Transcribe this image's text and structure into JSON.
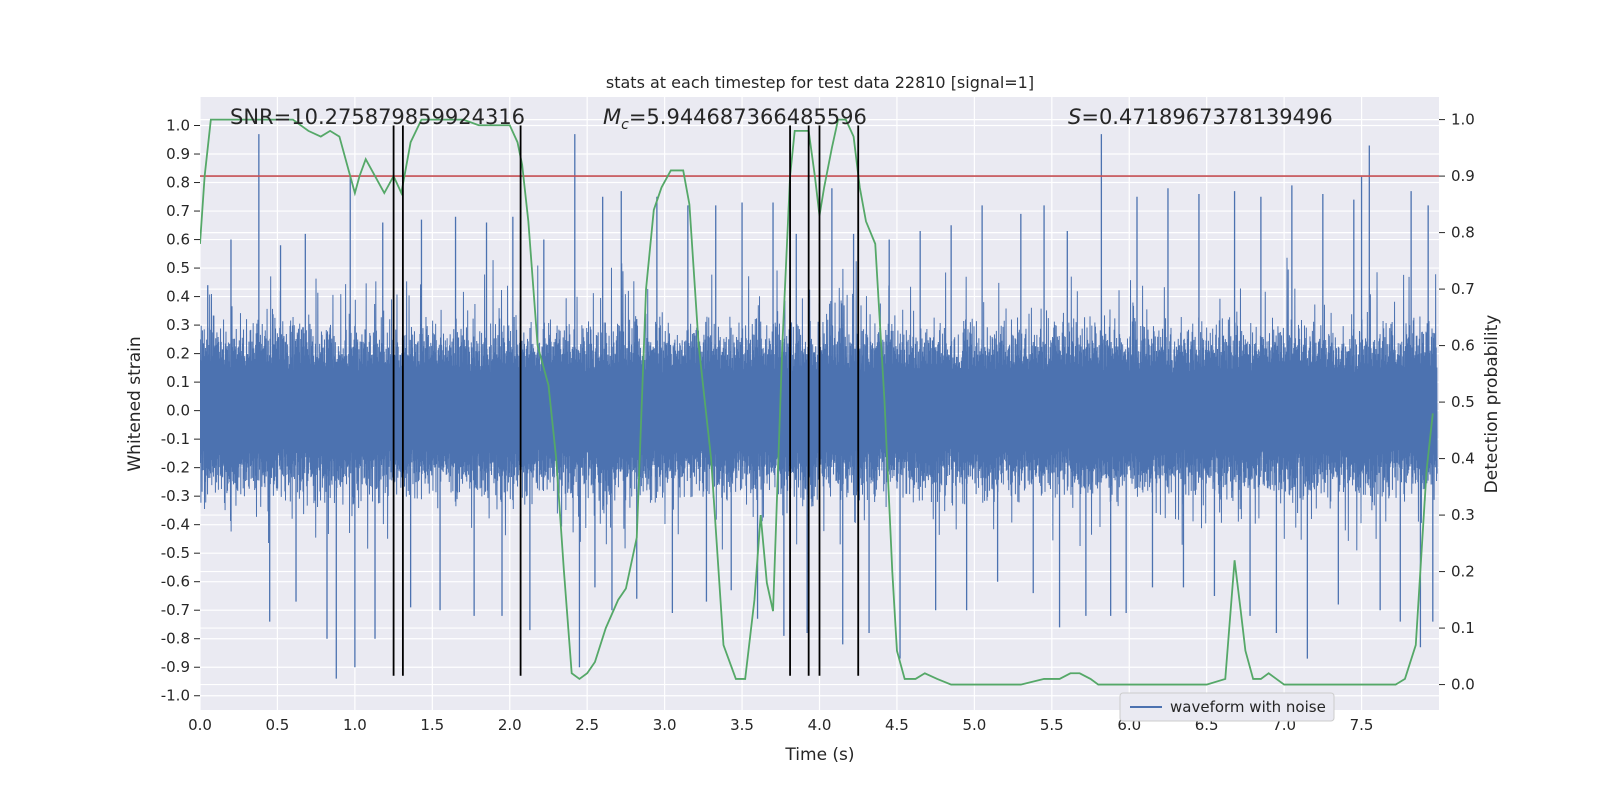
{
  "chart_data": {
    "type": "line",
    "title": "stats at each timestep for test data 22810 [signal=1]",
    "xlabel": "Time (s)",
    "ylabel": "Whitened strain",
    "y2label": "Detection probability",
    "xlim": [
      0.0,
      8.0
    ],
    "ylim": [
      -1.05,
      1.1
    ],
    "y2lim": [
      -0.045,
      1.04
    ],
    "xticks": [
      "0.0",
      "0.5",
      "1.0",
      "1.5",
      "2.0",
      "2.5",
      "3.0",
      "3.5",
      "4.0",
      "4.5",
      "5.0",
      "5.5",
      "6.0",
      "6.5",
      "7.0",
      "7.5"
    ],
    "yticks": [
      "1.0",
      "0.9",
      "0.8",
      "0.7",
      "0.6",
      "0.5",
      "0.4",
      "0.3",
      "0.2",
      "0.1",
      "0.0",
      "-0.1",
      "-0.2",
      "-0.3",
      "-0.4",
      "-0.5",
      "-0.6",
      "-0.7",
      "-0.8",
      "-0.9",
      "-1.0"
    ],
    "y2ticks": [
      "1.0",
      "0.9",
      "0.8",
      "0.7",
      "0.6",
      "0.5",
      "0.4",
      "0.3",
      "0.2",
      "0.1",
      "0.0"
    ],
    "grid": true,
    "legend_position": "bottom-right",
    "annotations": {
      "snr": "SNR=10.275879859924316",
      "mc_symbol": "M",
      "mc_sub": "c",
      "mc_value": "=5.944687366485596",
      "s_symbol": "S",
      "s_value": "=0.4718967378139496"
    },
    "threshold": {
      "value": 0.9,
      "axis": "right",
      "color": "#c44e52"
    },
    "vertical_markers": [
      1.25,
      1.31,
      2.07,
      3.81,
      3.93,
      4.0,
      4.25
    ],
    "series": [
      {
        "name": "waveform with noise",
        "color": "#4c72b0",
        "axis": "left",
        "description_range": [
          -1.0,
          1.0
        ],
        "spikes": [
          [
            0.05,
            0.44
          ],
          [
            0.2,
            0.6
          ],
          [
            0.38,
            0.97
          ],
          [
            0.45,
            -0.74
          ],
          [
            0.52,
            0.58
          ],
          [
            0.62,
            -0.67
          ],
          [
            0.68,
            0.62
          ],
          [
            0.82,
            -0.8
          ],
          [
            0.88,
            -0.94
          ],
          [
            0.97,
            0.82
          ],
          [
            1.0,
            -0.9
          ],
          [
            1.13,
            -0.8
          ],
          [
            1.18,
            0.66
          ],
          [
            1.36,
            -0.69
          ],
          [
            1.43,
            0.67
          ],
          [
            1.55,
            -0.7
          ],
          [
            1.65,
            0.68
          ],
          [
            1.77,
            -0.72
          ],
          [
            1.85,
            0.66
          ],
          [
            1.95,
            -0.72
          ],
          [
            2.02,
            0.68
          ],
          [
            2.13,
            -0.77
          ],
          [
            2.22,
            0.6
          ],
          [
            2.42,
            0.97
          ],
          [
            2.45,
            -0.9
          ],
          [
            2.55,
            -0.62
          ],
          [
            2.6,
            0.75
          ],
          [
            2.66,
            -0.7
          ],
          [
            2.72,
            0.77
          ],
          [
            2.82,
            -0.66
          ],
          [
            2.95,
            0.75
          ],
          [
            3.05,
            -0.71
          ],
          [
            3.15,
            0.72
          ],
          [
            3.27,
            -0.67
          ],
          [
            3.33,
            0.72
          ],
          [
            3.43,
            -0.63
          ],
          [
            3.5,
            0.73
          ],
          [
            3.6,
            -0.73
          ],
          [
            3.7,
            0.73
          ],
          [
            3.77,
            -0.79
          ],
          [
            3.85,
            0.62
          ],
          [
            3.92,
            -0.78
          ],
          [
            4.08,
            0.78
          ],
          [
            4.15,
            -0.82
          ],
          [
            4.22,
            0.62
          ],
          [
            4.32,
            -0.78
          ],
          [
            4.45,
            0.6
          ],
          [
            4.52,
            -0.87
          ],
          [
            4.65,
            0.63
          ],
          [
            4.75,
            -0.7
          ],
          [
            4.85,
            0.65
          ],
          [
            4.95,
            -0.7
          ],
          [
            5.05,
            0.72
          ],
          [
            5.15,
            -0.6
          ],
          [
            5.3,
            0.69
          ],
          [
            5.38,
            -0.64
          ],
          [
            5.45,
            0.72
          ],
          [
            5.55,
            -0.76
          ],
          [
            5.6,
            0.63
          ],
          [
            5.72,
            -0.72
          ],
          [
            5.82,
            0.97
          ],
          [
            5.88,
            -0.72
          ],
          [
            5.98,
            -0.71
          ],
          [
            6.05,
            0.75
          ],
          [
            6.15,
            -0.62
          ],
          [
            6.25,
            0.78
          ],
          [
            6.35,
            -0.62
          ],
          [
            6.45,
            0.76
          ],
          [
            6.55,
            -0.65
          ],
          [
            6.68,
            0.77
          ],
          [
            6.78,
            -0.72
          ],
          [
            6.85,
            0.75
          ],
          [
            6.95,
            -0.78
          ],
          [
            7.05,
            0.79
          ],
          [
            7.15,
            -0.87
          ],
          [
            7.25,
            0.76
          ],
          [
            7.35,
            -0.68
          ],
          [
            7.45,
            0.74
          ],
          [
            7.5,
            0.82
          ],
          [
            7.55,
            0.93
          ],
          [
            7.62,
            -0.7
          ],
          [
            7.75,
            -0.74
          ],
          [
            7.82,
            0.77
          ],
          [
            7.88,
            -0.83
          ],
          [
            7.93,
            0.72
          ],
          [
            7.96,
            -0.74
          ]
        ]
      },
      {
        "name": "Detection probability",
        "color": "#55a868",
        "axis": "right",
        "x": [
          0.0,
          0.03,
          0.07,
          0.14,
          0.2,
          0.3,
          0.4,
          0.5,
          0.6,
          0.7,
          0.78,
          0.84,
          0.9,
          0.96,
          1.0,
          1.03,
          1.07,
          1.13,
          1.19,
          1.25,
          1.3,
          1.36,
          1.43,
          1.5,
          1.6,
          1.7,
          1.8,
          1.85,
          1.95,
          2.0,
          2.05,
          2.08,
          2.12,
          2.18,
          2.25,
          2.3,
          2.35,
          2.4,
          2.45,
          2.5,
          2.55,
          2.62,
          2.7,
          2.75,
          2.82,
          2.88,
          2.93,
          2.98,
          3.04,
          3.08,
          3.12,
          3.16,
          3.22,
          3.3,
          3.38,
          3.46,
          3.52,
          3.58,
          3.62,
          3.66,
          3.7,
          3.76,
          3.81,
          3.84,
          3.88,
          3.93,
          3.97,
          4.0,
          4.03,
          4.08,
          4.12,
          4.17,
          4.22,
          4.26,
          4.3,
          4.36,
          4.42,
          4.47,
          4.5,
          4.55,
          4.62,
          4.68,
          4.76,
          4.85,
          4.95,
          5.1,
          5.3,
          5.45,
          5.55,
          5.62,
          5.68,
          5.75,
          5.8,
          5.95,
          6.15,
          6.25,
          6.35,
          6.5,
          6.62,
          6.68,
          6.72,
          6.75,
          6.8,
          6.85,
          6.9,
          6.95,
          7.0,
          7.1,
          7.2,
          7.4,
          7.6,
          7.72,
          7.78,
          7.85,
          7.92,
          7.96
        ],
        "y": [
          0.78,
          0.9,
          1.0,
          1.0,
          1.0,
          1.0,
          1.0,
          1.0,
          1.0,
          0.98,
          0.97,
          0.98,
          0.97,
          0.91,
          0.87,
          0.9,
          0.93,
          0.9,
          0.87,
          0.9,
          0.87,
          0.96,
          1.0,
          1.0,
          1.0,
          1.0,
          0.99,
          0.99,
          0.99,
          0.99,
          0.96,
          0.92,
          0.82,
          0.6,
          0.53,
          0.4,
          0.2,
          0.02,
          0.01,
          0.02,
          0.04,
          0.1,
          0.15,
          0.17,
          0.26,
          0.7,
          0.84,
          0.88,
          0.91,
          0.91,
          0.91,
          0.85,
          0.6,
          0.4,
          0.07,
          0.01,
          0.01,
          0.15,
          0.3,
          0.18,
          0.13,
          0.6,
          0.9,
          0.98,
          0.98,
          0.98,
          0.9,
          0.83,
          0.88,
          0.95,
          1.0,
          1.0,
          0.97,
          0.88,
          0.82,
          0.78,
          0.5,
          0.2,
          0.06,
          0.01,
          0.01,
          0.02,
          0.01,
          0.0,
          0.0,
          0.0,
          0.0,
          0.01,
          0.01,
          0.02,
          0.02,
          0.01,
          0.0,
          0.0,
          0.0,
          0.0,
          0.0,
          0.0,
          0.01,
          0.22,
          0.13,
          0.06,
          0.01,
          0.01,
          0.02,
          0.01,
          0.0,
          0.0,
          0.0,
          0.0,
          0.0,
          0.0,
          0.01,
          0.07,
          0.38,
          0.48
        ]
      },
      {
        "name": "",
        "color": "#000000",
        "axis": "left",
        "type": "vlines"
      }
    ]
  }
}
